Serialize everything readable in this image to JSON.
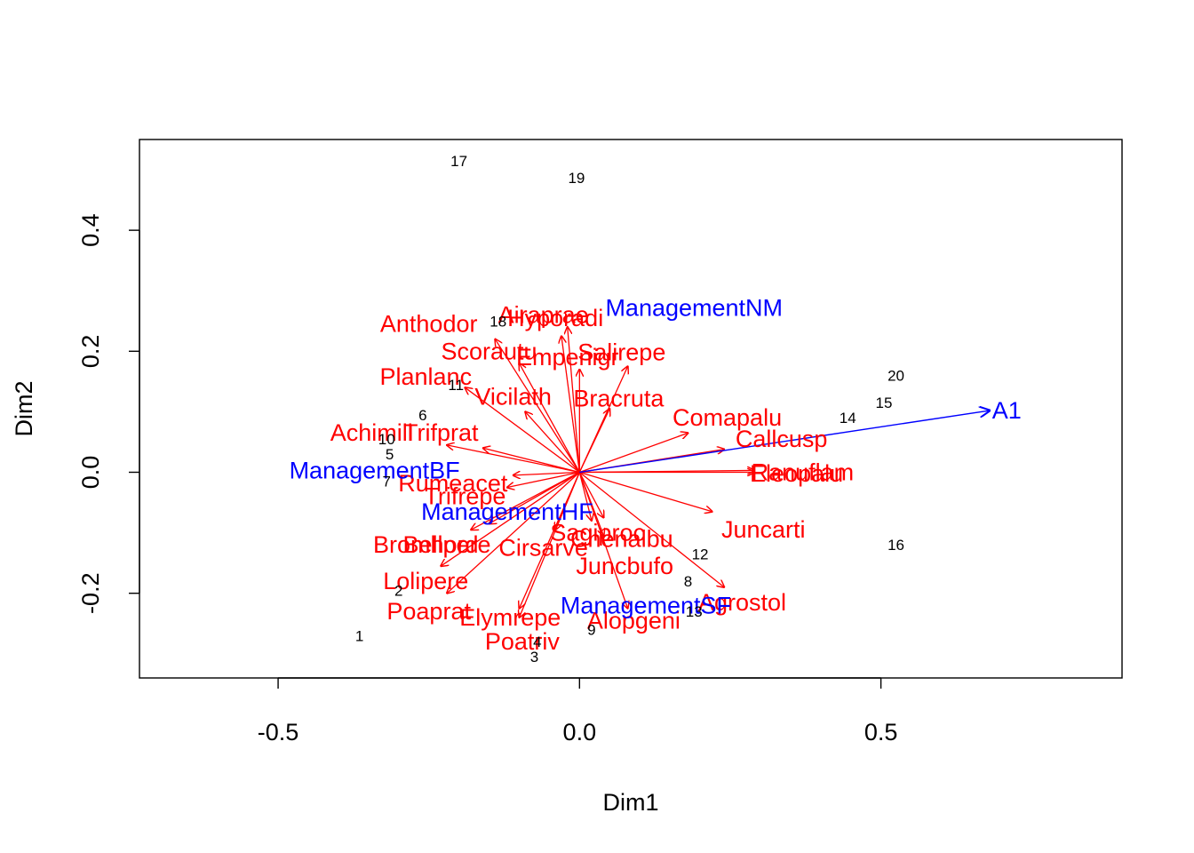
{
  "chart_data": {
    "type": "scatter",
    "subtype": "biplot",
    "xlabel": "Dim1",
    "ylabel": "Dim2",
    "xlim": [
      -0.73,
      0.9
    ],
    "ylim": [
      -0.34,
      0.55
    ],
    "xticks": [
      -0.5,
      0.0,
      0.5
    ],
    "xtick_labels": [
      "-0.5",
      "0.0",
      "0.5"
    ],
    "yticks": [
      -0.2,
      0.0,
      0.2,
      0.4
    ],
    "ytick_labels": [
      "-0.2",
      "0.0",
      "0.2",
      "0.4"
    ],
    "grid": false,
    "colors": {
      "sites": "#000000",
      "species": "#ff0000",
      "environment": "#0000ff"
    },
    "sites": [
      {
        "label": "1",
        "x": -0.365,
        "y": -0.27
      },
      {
        "label": "2",
        "x": -0.3,
        "y": -0.195
      },
      {
        "label": "3",
        "x": -0.075,
        "y": -0.305
      },
      {
        "label": "4",
        "x": -0.07,
        "y": -0.28
      },
      {
        "label": "5",
        "x": -0.315,
        "y": 0.03
      },
      {
        "label": "6",
        "x": -0.26,
        "y": 0.095
      },
      {
        "label": "7",
        "x": -0.32,
        "y": -0.015
      },
      {
        "label": "8",
        "x": 0.18,
        "y": -0.18
      },
      {
        "label": "9",
        "x": 0.02,
        "y": -0.26
      },
      {
        "label": "10",
        "x": -0.32,
        "y": 0.055
      },
      {
        "label": "11",
        "x": -0.205,
        "y": 0.145
      },
      {
        "label": "12",
        "x": 0.2,
        "y": -0.135
      },
      {
        "label": "13",
        "x": 0.19,
        "y": -0.23
      },
      {
        "label": "14",
        "x": 0.445,
        "y": 0.09
      },
      {
        "label": "15",
        "x": 0.505,
        "y": 0.115
      },
      {
        "label": "16",
        "x": 0.525,
        "y": -0.12
      },
      {
        "label": "17",
        "x": -0.2,
        "y": 0.515
      },
      {
        "label": "18",
        "x": -0.135,
        "y": 0.25
      },
      {
        "label": "19",
        "x": -0.005,
        "y": 0.487
      },
      {
        "label": "20",
        "x": 0.525,
        "y": 0.16
      }
    ],
    "species": [
      {
        "label": "Achimill",
        "x": -0.16,
        "y": 0.04,
        "lx": -0.345,
        "ly": 0.065
      },
      {
        "label": "Agrostol",
        "x": 0.24,
        "y": -0.19,
        "lx": 0.27,
        "ly": -0.215
      },
      {
        "label": "Airaprae",
        "x": -0.02,
        "y": 0.24,
        "lx": -0.06,
        "ly": 0.26
      },
      {
        "label": "Alopgeni",
        "x": 0.08,
        "y": -0.225,
        "lx": 0.09,
        "ly": -0.245
      },
      {
        "label": "Anthodor",
        "x": -0.14,
        "y": 0.22,
        "lx": -0.25,
        "ly": 0.245
      },
      {
        "label": "Bellpere",
        "x": -0.15,
        "y": -0.085,
        "lx": -0.22,
        "ly": -0.12
      },
      {
        "label": "Bromhord",
        "x": -0.18,
        "y": -0.095,
        "lx": -0.255,
        "ly": -0.12
      },
      {
        "label": "Chenalbu",
        "x": 0.04,
        "y": -0.075,
        "lx": 0.07,
        "ly": -0.11
      },
      {
        "label": "Cirsarve",
        "x": -0.04,
        "y": -0.095,
        "lx": -0.06,
        "ly": -0.125
      },
      {
        "label": "Comapalu",
        "x": 0.18,
        "y": 0.065,
        "lx": 0.245,
        "ly": 0.09
      },
      {
        "label": "Eleopalu",
        "x": 0.29,
        "y": 0.003,
        "lx": 0.36,
        "ly": -0.002
      },
      {
        "label": "Elymrepe",
        "x": -0.1,
        "y": -0.225,
        "lx": -0.115,
        "ly": -0.24
      },
      {
        "label": "Empenigr",
        "x": 0.0,
        "y": 0.17,
        "lx": -0.02,
        "ly": 0.19
      },
      {
        "label": "Hyporadi",
        "x": -0.03,
        "y": 0.225,
        "lx": -0.04,
        "ly": 0.255
      },
      {
        "label": "Juncarti",
        "x": 0.22,
        "y": -0.065,
        "lx": 0.305,
        "ly": -0.095
      },
      {
        "label": "Juncbufo",
        "x": 0.04,
        "y": -0.105,
        "lx": 0.075,
        "ly": -0.155
      },
      {
        "label": "Lolipere",
        "x": -0.23,
        "y": -0.155,
        "lx": -0.255,
        "ly": -0.18
      },
      {
        "label": "Planlanc",
        "x": -0.19,
        "y": 0.14,
        "lx": -0.255,
        "ly": 0.158
      },
      {
        "label": "Poaprat",
        "x": -0.22,
        "y": -0.2,
        "lx": -0.25,
        "ly": -0.23
      },
      {
        "label": "Poatriv",
        "x": -0.1,
        "y": -0.24,
        "lx": -0.095,
        "ly": -0.28
      },
      {
        "label": "Ranuflam",
        "x": 0.29,
        "y": 0.0,
        "lx": 0.37,
        "ly": 0.0
      },
      {
        "label": "Rumeacet",
        "x": -0.11,
        "y": -0.005,
        "lx": -0.21,
        "ly": -0.018
      },
      {
        "label": "Sagiproc",
        "x": 0.02,
        "y": -0.08,
        "lx": 0.03,
        "ly": -0.1
      },
      {
        "label": "Salirepe",
        "x": 0.08,
        "y": 0.175,
        "lx": 0.07,
        "ly": 0.198
      },
      {
        "label": "Scorautu",
        "x": -0.1,
        "y": 0.18,
        "lx": -0.15,
        "ly": 0.2
      },
      {
        "label": "Trifprat",
        "x": -0.22,
        "y": 0.045,
        "lx": -0.23,
        "ly": 0.065
      },
      {
        "label": "Trifrepe",
        "x": -0.12,
        "y": -0.025,
        "lx": -0.19,
        "ly": -0.04
      },
      {
        "label": "Vicilath",
        "x": -0.09,
        "y": 0.1,
        "lx": -0.11,
        "ly": 0.125
      },
      {
        "label": "Bracruta",
        "x": 0.05,
        "y": 0.105,
        "lx": 0.065,
        "ly": 0.122
      },
      {
        "label": "Callcusp",
        "x": 0.24,
        "y": 0.038,
        "lx": 0.335,
        "ly": 0.055
      }
    ],
    "environment": [
      {
        "label": "A1",
        "x": 0.68,
        "y": 0.102,
        "arrow": true
      },
      {
        "label": "ManagementNM",
        "x": 0.19,
        "y": 0.272,
        "arrow": false
      },
      {
        "label": "ManagementBF",
        "x": -0.34,
        "y": 0.003,
        "arrow": false
      },
      {
        "label": "ManagementHF",
        "x": -0.12,
        "y": -0.065,
        "arrow": false
      },
      {
        "label": "ManagementSF",
        "x": 0.11,
        "y": -0.22,
        "arrow": false
      }
    ]
  }
}
